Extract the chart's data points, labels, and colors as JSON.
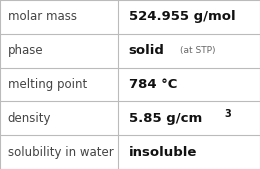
{
  "rows": [
    {
      "label": "molar mass",
      "value": "524.955 g/mol",
      "superscript": null,
      "small_text": null
    },
    {
      "label": "phase",
      "value": "solid",
      "superscript": null,
      "small_text": "(at STP)"
    },
    {
      "label": "melting point",
      "value": "784 °C",
      "superscript": null,
      "small_text": null
    },
    {
      "label": "density",
      "value": "5.85 g/cm",
      "superscript": "3",
      "small_text": null
    },
    {
      "label": "solubility in water",
      "value": "insoluble",
      "superscript": null,
      "small_text": null
    }
  ],
  "col_split": 0.455,
  "background_color": "#ffffff",
  "border_color": "#bbbbbb",
  "label_fontsize": 8.5,
  "value_fontsize": 9.5,
  "small_fontsize": 6.5,
  "sup_fontsize": 7.0,
  "label_color": "#444444",
  "value_color": "#111111",
  "small_color": "#666666"
}
